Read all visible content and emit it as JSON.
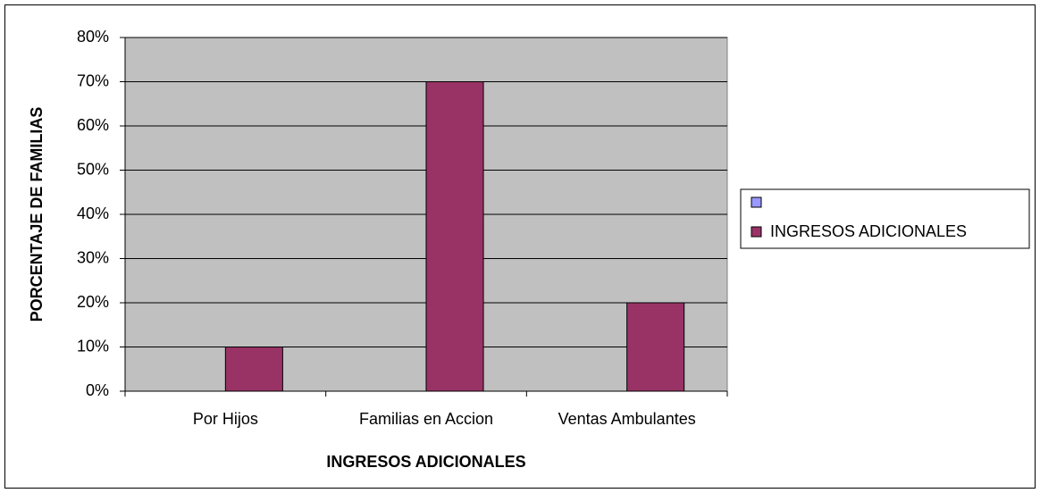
{
  "chart_data": {
    "type": "bar",
    "x_label": "INGRESOS ADICIONALES",
    "y_label": "PORCENTAJE DE FAMILIAS",
    "categories": [
      "Por Hijos",
      "Familias en Accion",
      "Ventas Ambulantes"
    ],
    "series": [
      {
        "name": null,
        "color": "#9999ff",
        "values": [
          null,
          null,
          null
        ]
      },
      {
        "name": "INGRESOS ADICIONALES",
        "color": "#993366",
        "values": [
          10,
          70,
          20
        ]
      }
    ],
    "ylim": [
      0,
      80
    ],
    "yticks": [
      {
        "value": 0,
        "label": "0%"
      },
      {
        "value": 10,
        "label": "10%"
      },
      {
        "value": 20,
        "label": "20%"
      },
      {
        "value": 30,
        "label": "30%"
      },
      {
        "value": 40,
        "label": "40%"
      },
      {
        "value": 50,
        "label": "50%"
      },
      {
        "value": 60,
        "label": "60%"
      },
      {
        "value": 70,
        "label": "70%"
      },
      {
        "value": 80,
        "label": "80%"
      }
    ],
    "grid": true,
    "plot_background": "#c0c0c0",
    "legend": "right"
  }
}
